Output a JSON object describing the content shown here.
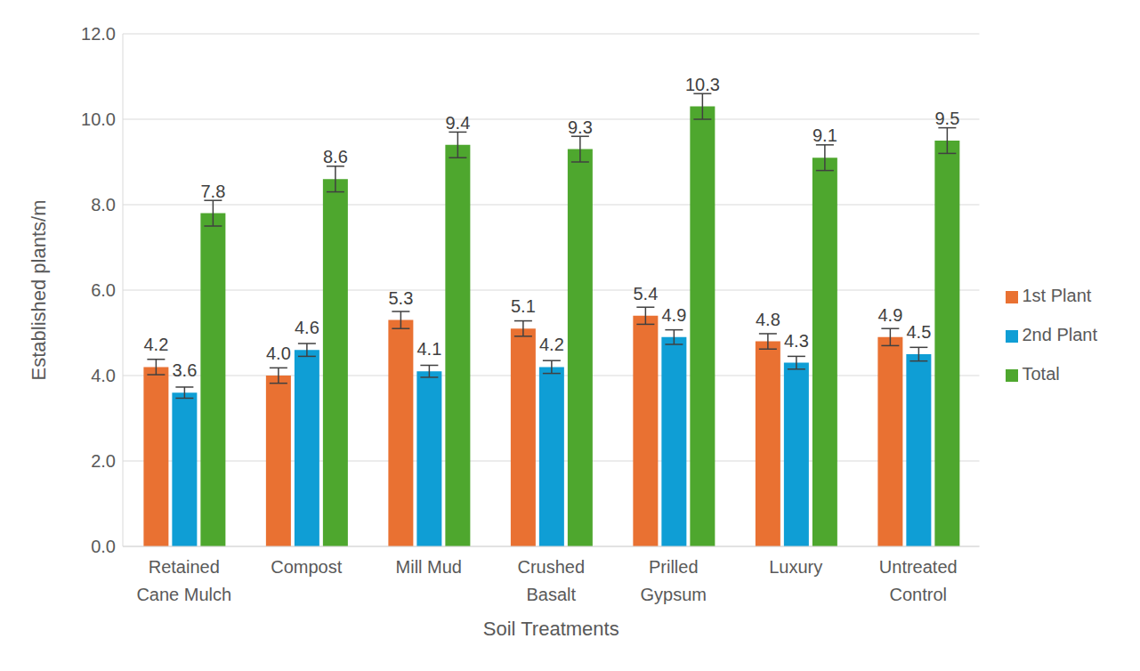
{
  "chart_data": {
    "type": "bar",
    "title": null,
    "x_label": "Soil Treatments",
    "y_label": "Established plants/m",
    "categories": [
      "Retained Cane Mulch",
      "Compost",
      "Mill Mud",
      "Crushed Basalt",
      "Prilled Gypsum",
      "Luxury",
      "Untreated Control"
    ],
    "series": [
      {
        "name": "1st Plant",
        "color": "#E97132",
        "values": [
          4.2,
          4.0,
          5.3,
          5.1,
          5.4,
          4.8,
          4.9
        ],
        "value_labels": [
          "4.2",
          "4.0",
          "5.3",
          "5.1",
          "5.4",
          "4.8",
          "4.9"
        ],
        "errors": [
          0.18,
          0.18,
          0.2,
          0.18,
          0.2,
          0.18,
          0.2
        ]
      },
      {
        "name": "2nd Plant",
        "color": "#0F9ED5",
        "values": [
          3.6,
          4.6,
          4.1,
          4.2,
          4.9,
          4.3,
          4.5
        ],
        "value_labels": [
          "3.6",
          "4.6",
          "4.1",
          "4.2",
          "4.9",
          "4.3",
          "4.5"
        ],
        "errors": [
          0.13,
          0.15,
          0.14,
          0.15,
          0.17,
          0.15,
          0.16
        ]
      },
      {
        "name": "Total",
        "color": "#4EA72E",
        "values": [
          7.8,
          8.6,
          9.4,
          9.3,
          10.3,
          9.1,
          9.5
        ],
        "value_labels": [
          "7.8",
          "8.6",
          "9.4",
          "9.3",
          "10.3",
          "9.1",
          "9.5"
        ],
        "errors": [
          0.3,
          0.3,
          0.3,
          0.3,
          0.3,
          0.3,
          0.3
        ]
      }
    ],
    "ylim": [
      0,
      12
    ],
    "yticks": [
      {
        "value": 0,
        "label": "0.0"
      },
      {
        "value": 2,
        "label": "2.0"
      },
      {
        "value": 4,
        "label": "4.0"
      },
      {
        "value": 6,
        "label": "6.0"
      },
      {
        "value": 8,
        "label": "8.0"
      },
      {
        "value": 10,
        "label": "10.0"
      },
      {
        "value": 12,
        "label": "12.0"
      }
    ],
    "grid": true,
    "legend": "right",
    "data_labels": true
  }
}
